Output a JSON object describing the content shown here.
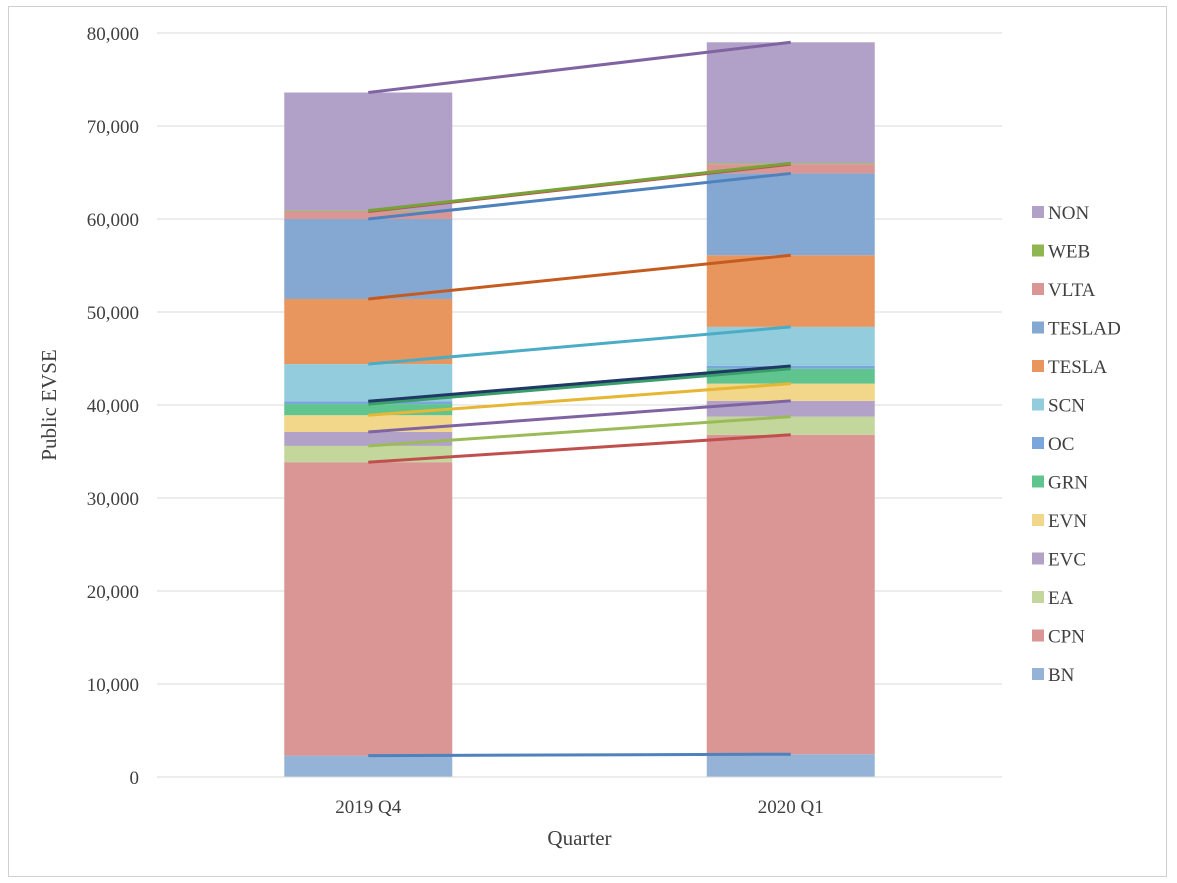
{
  "chart_data": {
    "type": "bar",
    "stacked": true,
    "categories": [
      "2019 Q4",
      "2020 Q1"
    ],
    "xlabel": "Quarter",
    "ylabel": "Public EVSE",
    "ylim": [
      0,
      80000
    ],
    "ytick_step": 10000,
    "yticks": [
      "0",
      "10,000",
      "20,000",
      "30,000",
      "40,000",
      "50,000",
      "60,000",
      "70,000",
      "80,000"
    ],
    "grid": true,
    "legend_position": "right",
    "series_lines": true,
    "series": [
      {
        "name": "BN",
        "values": [
          2300,
          2450
        ],
        "color": "#95b3d7",
        "line_color": "#4f81bd"
      },
      {
        "name": "CPN",
        "values": [
          31550,
          34350
        ],
        "color": "#d99694",
        "line_color": "#c0504d"
      },
      {
        "name": "EA",
        "values": [
          1750,
          1950
        ],
        "color": "#c3d69b",
        "line_color": "#9bbb59"
      },
      {
        "name": "EVC",
        "values": [
          1500,
          1700
        ],
        "color": "#b3a2c7",
        "line_color": "#8064a2"
      },
      {
        "name": "EVN",
        "values": [
          1800,
          1850
        ],
        "color": "#f2d78a",
        "line_color": "#e5b735"
      },
      {
        "name": "GRN",
        "values": [
          1200,
          1600
        ],
        "color": "#5fc48e",
        "line_color": "#3a9e6a"
      },
      {
        "name": "OC",
        "values": [
          300,
          300
        ],
        "color": "#7aa6dc",
        "line_color": "#1f3864"
      },
      {
        "name": "SCN",
        "values": [
          4000,
          4200
        ],
        "color": "#93cddd",
        "line_color": "#4bacc6"
      },
      {
        "name": "TESLA",
        "values": [
          7000,
          7700
        ],
        "color": "#e8955e",
        "line_color": "#c65b1f"
      },
      {
        "name": "TESLAD",
        "values": [
          8600,
          8800
        ],
        "color": "#85a8d3",
        "line_color": "#4f81bd"
      },
      {
        "name": "VLTA",
        "values": [
          800,
          1000
        ],
        "color": "#d99694",
        "line_color": "#c0504d"
      },
      {
        "name": "WEB",
        "values": [
          100,
          100
        ],
        "color": "#8fb650",
        "line_color": "#77a33a"
      },
      {
        "name": "NON",
        "values": [
          12700,
          13000
        ],
        "color": "#b1a0c7",
        "line_color": "#8064a2"
      }
    ]
  }
}
